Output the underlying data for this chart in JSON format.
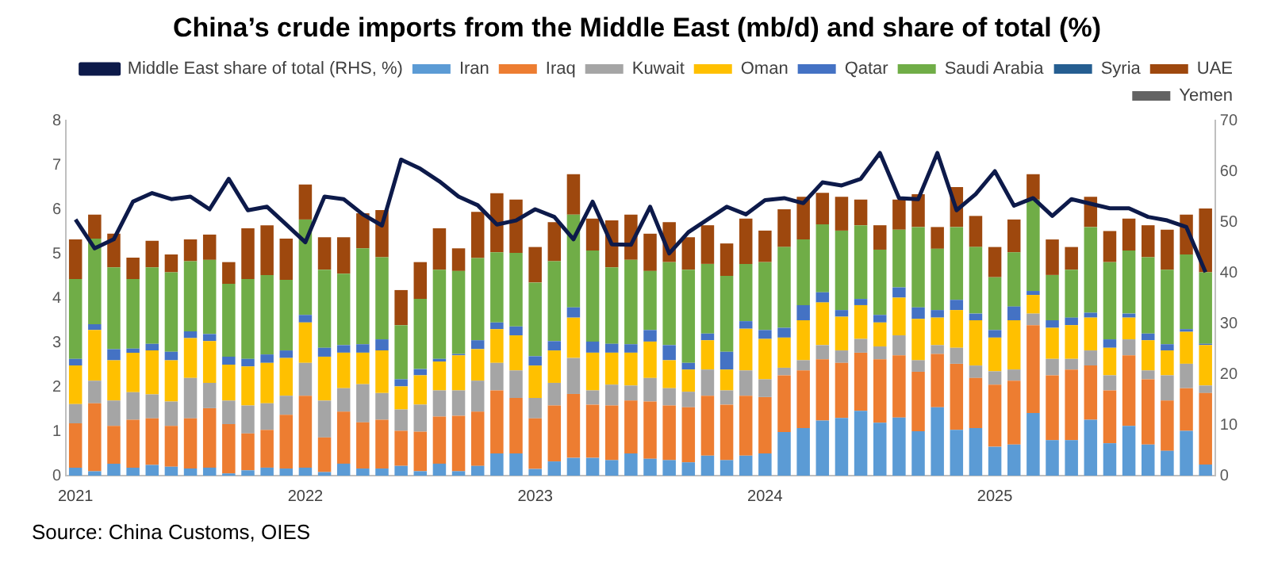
{
  "chart_data": {
    "type": "bar",
    "title": "China’s crude imports from the Middle East (mb/d) and share of total (%)",
    "categories": [
      "2021",
      null,
      null,
      null,
      null,
      null,
      null,
      null,
      null,
      null,
      null,
      null,
      "2022",
      null,
      null,
      null,
      null,
      null,
      null,
      null,
      null,
      null,
      null,
      null,
      "2023",
      null,
      null,
      null,
      null,
      null,
      null,
      null,
      null,
      null,
      null,
      null,
      "2024",
      null,
      null,
      null,
      null,
      null,
      null,
      null,
      null,
      null,
      null,
      null,
      "2025",
      null,
      null,
      null,
      null,
      null,
      null,
      null,
      null,
      null,
      null,
      null
    ],
    "stacked": true,
    "legend": "top",
    "marker": "none",
    "grid": false,
    "ylim": [
      0,
      8
    ],
    "yticks": [
      0,
      1,
      2,
      3,
      4,
      5,
      6,
      7,
      8
    ],
    "y2lim": [
      0,
      70
    ],
    "y2ticks": [
      0,
      10,
      20,
      30,
      40,
      50,
      60,
      70
    ],
    "annotations": [
      "Source: China Customs, OIES"
    ],
    "series": [
      {
        "name": "Iran",
        "color": "#5b9bd5",
        "values": [
          0.18,
          0.1,
          0.27,
          0.18,
          0.24,
          0.2,
          0.16,
          0.18,
          0.05,
          0.12,
          0.18,
          0.16,
          0.18,
          0.08,
          0.27,
          0.16,
          0.16,
          0.22,
          0.1,
          0.27,
          0.1,
          0.22,
          0.5,
          0.5,
          0.15,
          0.32,
          0.4,
          0.4,
          0.35,
          0.5,
          0.38,
          0.35,
          0.3,
          0.45,
          0.35,
          0.45,
          0.5,
          0.98,
          1.07,
          1.24,
          1.3,
          1.46,
          1.19,
          1.31,
          1.0,
          1.54,
          1.03,
          1.07,
          0.65,
          0.7,
          1.41,
          0.8,
          0.8,
          1.26,
          0.73,
          1.12,
          0.7,
          0.56,
          1.01,
          0.25
        ]
      },
      {
        "name": "Iraq",
        "color": "#ed7d31",
        "values": [
          1.0,
          1.53,
          0.85,
          1.08,
          1.05,
          0.92,
          1.13,
          1.34,
          1.11,
          0.83,
          0.85,
          1.21,
          1.62,
          0.78,
          1.17,
          1.04,
          1.1,
          0.79,
          0.89,
          1.06,
          1.25,
          1.22,
          1.42,
          1.25,
          1.14,
          1.26,
          1.44,
          1.2,
          1.23,
          1.19,
          1.29,
          1.23,
          1.24,
          1.35,
          1.25,
          1.35,
          1.27,
          1.28,
          1.3,
          1.38,
          1.24,
          1.31,
          1.43,
          1.4,
          1.34,
          1.2,
          1.49,
          1.13,
          1.4,
          1.44,
          1.98,
          1.46,
          1.59,
          1.22,
          1.19,
          1.59,
          1.47,
          1.13,
          0.96,
          1.61
        ]
      },
      {
        "name": "Kuwait",
        "color": "#a5a5a5",
        "values": [
          0.43,
          0.51,
          0.57,
          0.62,
          0.54,
          0.55,
          0.91,
          0.57,
          0.53,
          0.63,
          0.6,
          0.43,
          0.74,
          0.83,
          0.53,
          0.86,
          0.6,
          0.48,
          0.61,
          0.59,
          0.57,
          0.7,
          0.62,
          0.62,
          0.46,
          0.51,
          0.81,
          0.32,
          0.47,
          0.34,
          0.53,
          0.39,
          0.35,
          0.59,
          0.32,
          0.57,
          0.4,
          0.17,
          0.23,
          0.32,
          0.28,
          0.31,
          0.29,
          0.45,
          0.26,
          0.2,
          0.36,
          0.28,
          0.3,
          0.25,
          0.26,
          0.37,
          0.24,
          0.34,
          0.34,
          0.36,
          0.2,
          0.57,
          0.55,
          0.17
        ]
      },
      {
        "name": "Oman",
        "color": "#ffc000",
        "values": [
          0.87,
          1.14,
          0.91,
          0.89,
          0.99,
          0.93,
          0.9,
          0.94,
          0.81,
          0.88,
          0.91,
          0.85,
          0.91,
          0.99,
          0.8,
          0.71,
          0.96,
          0.52,
          0.66,
          0.65,
          0.79,
          0.71,
          0.76,
          0.79,
          0.73,
          0.73,
          0.91,
          0.85,
          0.72,
          0.74,
          0.82,
          0.63,
          0.5,
          0.66,
          0.47,
          0.94,
          0.91,
          0.68,
          0.9,
          0.96,
          0.76,
          0.76,
          0.54,
          0.85,
          0.93,
          0.62,
          0.85,
          1.02,
          0.76,
          1.11,
          0.42,
          0.7,
          0.76,
          0.74,
          0.62,
          0.49,
          0.68,
          0.56,
          0.72,
          0.91
        ]
      },
      {
        "name": "Qatar",
        "color": "#4472c4",
        "values": [
          0.15,
          0.13,
          0.25,
          0.09,
          0.15,
          0.19,
          0.15,
          0.16,
          0.18,
          0.17,
          0.19,
          0.17,
          0.17,
          0.2,
          0.17,
          0.19,
          0.25,
          0.16,
          0.14,
          0.06,
          0.03,
          0.2,
          0.15,
          0.2,
          0.21,
          0.21,
          0.23,
          0.25,
          0.2,
          0.19,
          0.26,
          0.34,
          0.15,
          0.15,
          0.4,
          0.17,
          0.2,
          0.22,
          0.34,
          0.23,
          0.15,
          0.14,
          0.17,
          0.23,
          0.26,
          0.17,
          0.23,
          0.15,
          0.17,
          0.31,
          0.09,
          0.17,
          0.17,
          0.11,
          0.19,
          0.09,
          0.15,
          0.14,
          0.06,
          0.03
        ]
      },
      {
        "name": "Saudi Arabia",
        "color": "#70ad47",
        "values": [
          1.8,
          1.93,
          1.84,
          1.57,
          1.72,
          1.79,
          1.58,
          1.67,
          1.64,
          1.8,
          1.79,
          1.59,
          2.15,
          1.76,
          1.61,
          2.16,
          1.85,
          1.22,
          1.58,
          2.01,
          1.87,
          1.85,
          1.58,
          1.66,
          1.66,
          1.8,
          2.09,
          2.05,
          1.72,
          1.9,
          1.33,
          1.87,
          2.1,
          1.57,
          1.71,
          1.29,
          1.53,
          1.82,
          1.48,
          1.53,
          1.79,
          1.66,
          1.47,
          1.3,
          1.81,
          1.38,
          1.64,
          1.5,
          1.19,
          1.22,
          2.06,
          1.02,
          1.08,
          1.93,
          1.74,
          1.42,
          1.72,
          1.68,
          1.68,
          1.61
        ]
      },
      {
        "name": "Syria",
        "color": "#255e91",
        "values": [
          0,
          0,
          0,
          0,
          0,
          0,
          0,
          0,
          0,
          0,
          0,
          0,
          0,
          0,
          0,
          0,
          0,
          0,
          0,
          0,
          0,
          0,
          0,
          0,
          0,
          0,
          0,
          0,
          0,
          0,
          0,
          0,
          0,
          0,
          0,
          0,
          0,
          0,
          0,
          0,
          0,
          0,
          0,
          0,
          0,
          0,
          0,
          0,
          0,
          0,
          0,
          0,
          0,
          0,
          0,
          0,
          0,
          0,
          0,
          0
        ]
      },
      {
        "name": "UAE",
        "color": "#9e480e",
        "values": [
          0.89,
          0.54,
          0.76,
          0.48,
          0.6,
          0.4,
          0.49,
          0.57,
          0.49,
          1.14,
          1.12,
          0.93,
          0.79,
          0.73,
          0.82,
          0.79,
          1.06,
          0.79,
          0.83,
          0.93,
          0.51,
          1.04,
          1.33,
          1.2,
          0.8,
          0.88,
          0.91,
          0.72,
          1.06,
          1.02,
          0.84,
          0.9,
          0.73,
          0.87,
          0.73,
          1.02,
          0.71,
          0.85,
          0.96,
          0.71,
          0.76,
          0.58,
          0.55,
          0.68,
          0.74,
          0.49,
          0.9,
          0.7,
          0.68,
          0.74,
          0.57,
          0.8,
          0.51,
          0.68,
          0.7,
          0.72,
          0.72,
          0.9,
          0.9,
          1.44
        ]
      },
      {
        "name": "Yemen",
        "color": "#636363",
        "values": [
          0,
          0,
          0,
          0,
          0,
          0,
          0,
          0,
          0,
          0,
          0,
          0,
          0,
          0,
          0,
          0,
          0,
          0,
          0,
          0,
          0,
          0,
          0,
          0,
          0,
          0,
          0,
          0,
          0,
          0,
          0,
          0,
          0,
          0,
          0,
          0,
          0,
          0,
          0,
          0,
          0,
          0,
          0,
          0,
          0,
          0,
          0,
          0,
          0,
          0,
          0,
          0,
          0,
          0,
          0,
          0,
          0,
          0,
          0,
          0
        ]
      },
      {
        "name": "Middle East share of total (RHS, %)",
        "type": "line",
        "axis": "y2",
        "color": "#0d1a4a",
        "values": [
          50.5,
          44.8,
          46.6,
          54,
          55.7,
          54.5,
          55,
          52.5,
          58.5,
          52.3,
          53,
          49.5,
          46,
          55,
          54.5,
          51.5,
          49.3,
          62.3,
          60.5,
          58,
          55,
          53.3,
          49.5,
          50.3,
          52.5,
          51,
          46.6,
          54,
          45.6,
          45.5,
          53,
          43.8,
          48,
          50.5,
          53,
          51.5,
          54.3,
          54.7,
          53.7,
          57.8,
          57.2,
          58.5,
          63.6,
          54.7,
          54.5,
          63.6,
          52.3,
          55.5,
          60,
          53.2,
          54.7,
          51.2,
          54.5,
          53.6,
          52.7,
          52.7,
          51,
          50.3,
          49,
          40.1
        ]
      }
    ]
  }
}
